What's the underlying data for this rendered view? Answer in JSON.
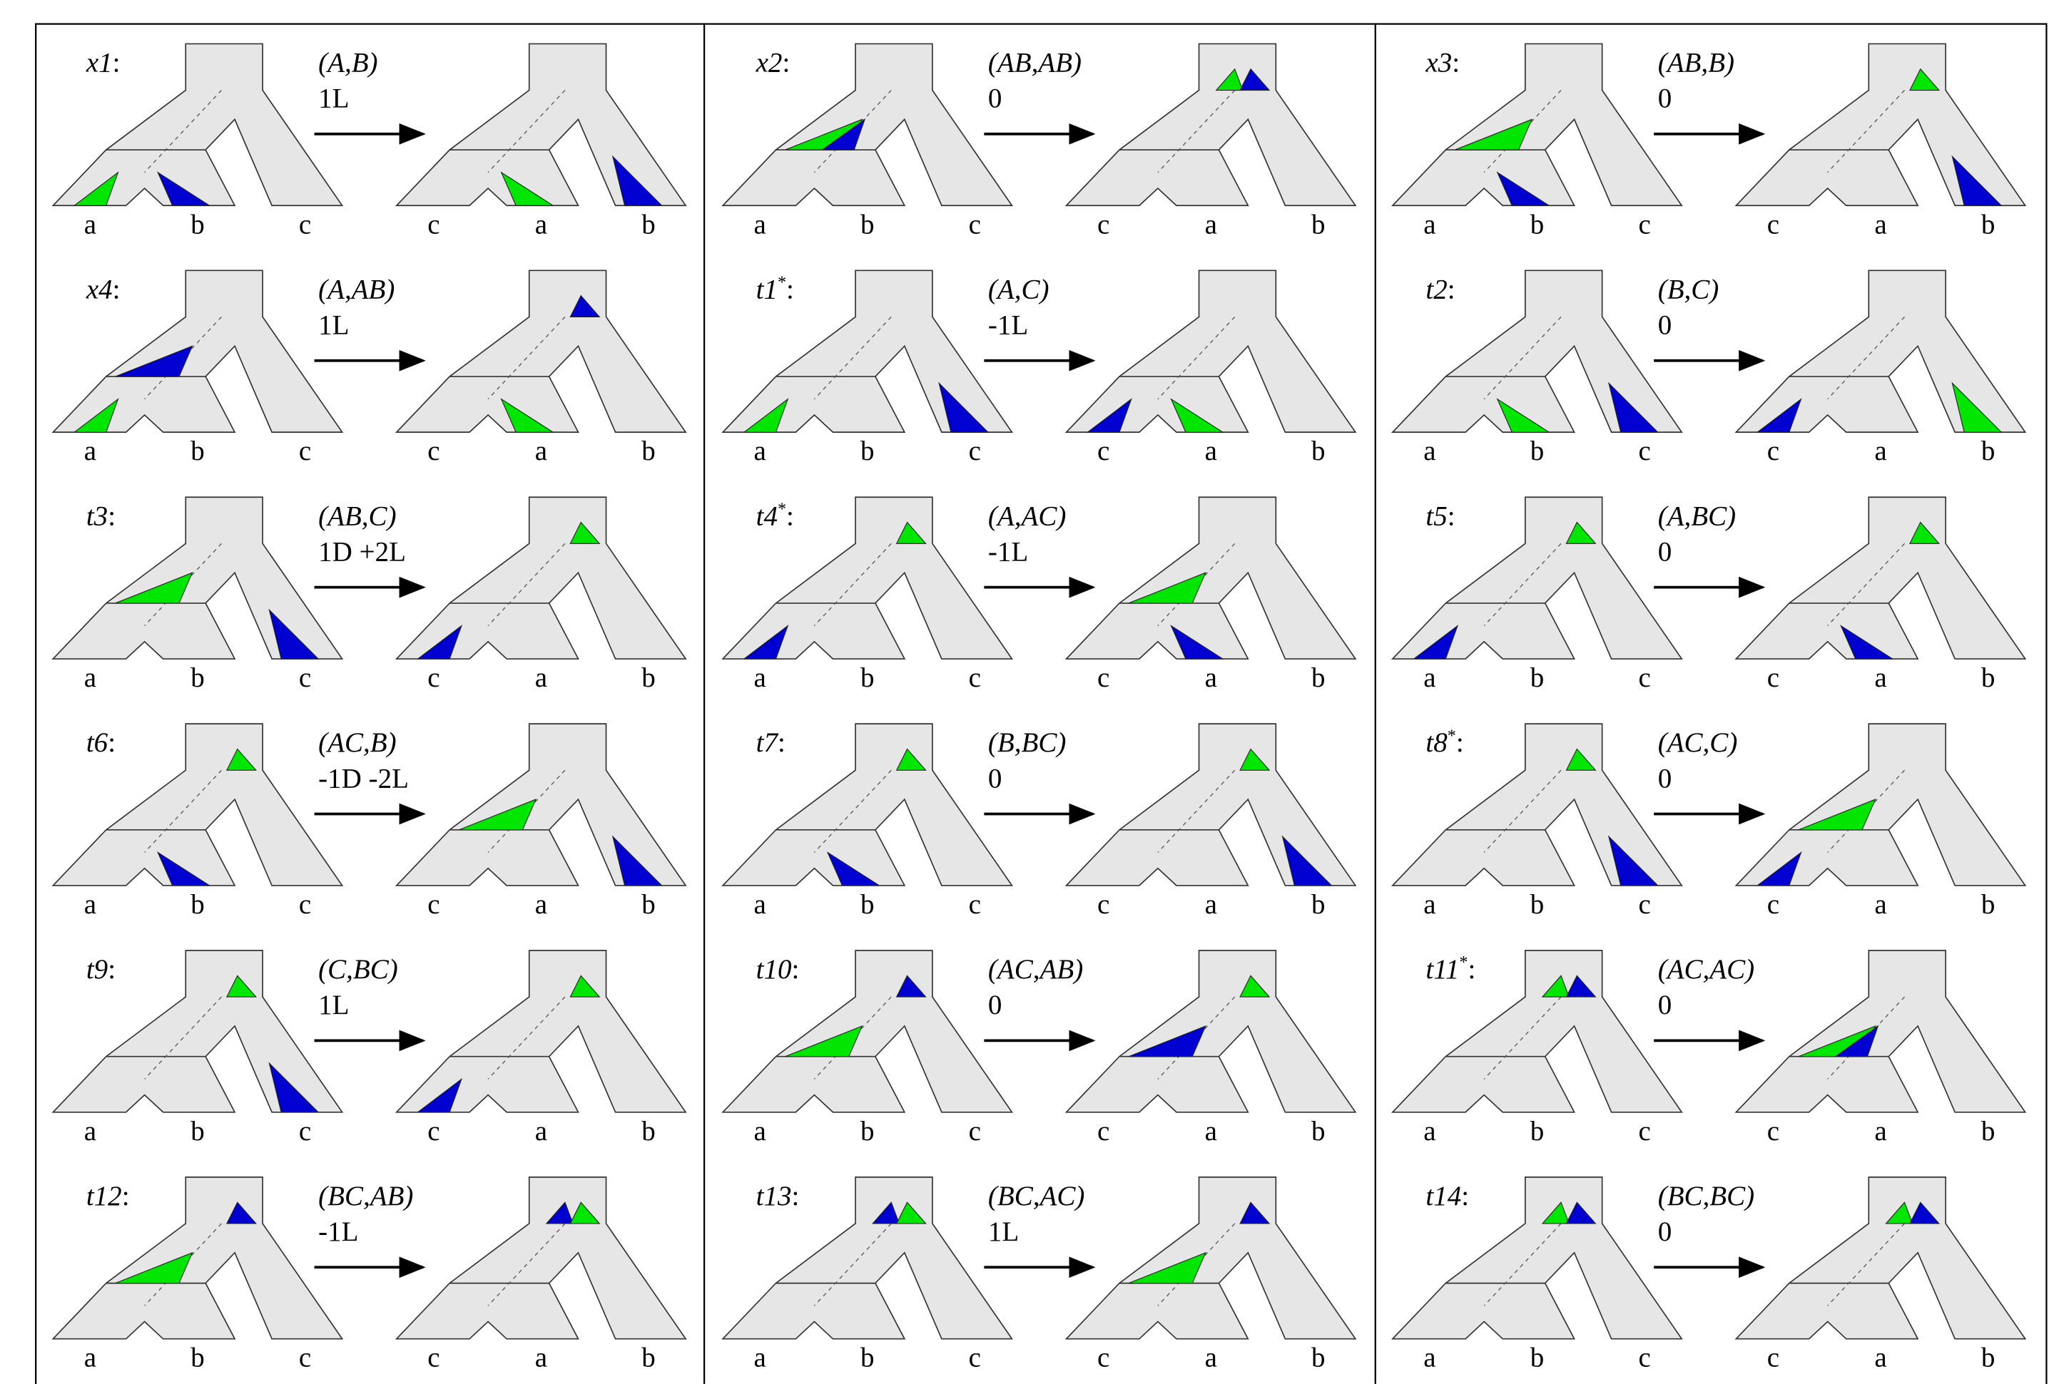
{
  "separator": ":",
  "panels": [
    {
      "label": "x1",
      "pair": "(A,B)",
      "cost": "1L",
      "left_leaves": [
        "a",
        "b",
        "c"
      ],
      "right_leaves": [
        "c",
        "a",
        "b"
      ]
    },
    {
      "label": "x2",
      "pair": "(AB,AB)",
      "cost": "0",
      "left_leaves": [
        "a",
        "b",
        "c"
      ],
      "right_leaves": [
        "c",
        "a",
        "b"
      ]
    },
    {
      "label": "x3",
      "pair": "(AB,B)",
      "cost": "0",
      "left_leaves": [
        "a",
        "b",
        "c"
      ],
      "right_leaves": [
        "c",
        "a",
        "b"
      ]
    },
    {
      "label": "x4",
      "pair": "(A,AB)",
      "cost": "1L",
      "left_leaves": [
        "a",
        "b",
        "c"
      ],
      "right_leaves": [
        "c",
        "a",
        "b"
      ]
    },
    {
      "label": "t1",
      "superscript": "*",
      "pair": "(A,C)",
      "cost": "-1L",
      "left_leaves": [
        "a",
        "b",
        "c"
      ],
      "right_leaves": [
        "c",
        "a",
        "b"
      ]
    },
    {
      "label": "t2",
      "pair": "(B,C)",
      "cost": "0",
      "left_leaves": [
        "a",
        "b",
        "c"
      ],
      "right_leaves": [
        "c",
        "a",
        "b"
      ]
    },
    {
      "label": "t3",
      "pair": "(AB,C)",
      "cost": "1D +2L",
      "left_leaves": [
        "a",
        "b",
        "c"
      ],
      "right_leaves": [
        "c",
        "a",
        "b"
      ]
    },
    {
      "label": "t4",
      "superscript": "*",
      "pair": "(A,AC)",
      "cost": "-1L",
      "left_leaves": [
        "a",
        "b",
        "c"
      ],
      "right_leaves": [
        "c",
        "a",
        "b"
      ]
    },
    {
      "label": "t5",
      "pair": "(A,BC)",
      "cost": "0",
      "left_leaves": [
        "a",
        "b",
        "c"
      ],
      "right_leaves": [
        "c",
        "a",
        "b"
      ]
    },
    {
      "label": "t6",
      "pair": "(AC,B)",
      "cost": "-1D -2L",
      "left_leaves": [
        "a",
        "b",
        "c"
      ],
      "right_leaves": [
        "c",
        "a",
        "b"
      ]
    },
    {
      "label": "t7",
      "pair": "(B,BC)",
      "cost": "0",
      "left_leaves": [
        "a",
        "b",
        "c"
      ],
      "right_leaves": [
        "c",
        "a",
        "b"
      ]
    },
    {
      "label": "t8",
      "superscript": "*",
      "pair": "(AC,C)",
      "cost": "0",
      "left_leaves": [
        "a",
        "b",
        "c"
      ],
      "right_leaves": [
        "c",
        "a",
        "b"
      ]
    },
    {
      "label": "t9",
      "pair": "(C,BC)",
      "cost": "1L",
      "left_leaves": [
        "a",
        "b",
        "c"
      ],
      "right_leaves": [
        "c",
        "a",
        "b"
      ]
    },
    {
      "label": "t10",
      "pair": "(AC,AB)",
      "cost": "0",
      "left_leaves": [
        "a",
        "b",
        "c"
      ],
      "right_leaves": [
        "c",
        "a",
        "b"
      ]
    },
    {
      "label": "t11",
      "superscript": "*",
      "pair": "(AC,AC)",
      "cost": "0",
      "left_leaves": [
        "a",
        "b",
        "c"
      ],
      "right_leaves": [
        "c",
        "a",
        "b"
      ]
    },
    {
      "label": "t12",
      "pair": "(BC,AB)",
      "cost": "-1L",
      "left_leaves": [
        "a",
        "b",
        "c"
      ],
      "right_leaves": [
        "c",
        "a",
        "b"
      ]
    },
    {
      "label": "t13",
      "pair": "(BC,AC)",
      "cost": "1L",
      "left_leaves": [
        "a",
        "b",
        "c"
      ],
      "right_leaves": [
        "c",
        "a",
        "b"
      ]
    },
    {
      "label": "t14",
      "pair": "(BC,BC)",
      "cost": "0",
      "left_leaves": [
        "a",
        "b",
        "c"
      ],
      "right_leaves": [
        "c",
        "a",
        "b"
      ]
    }
  ]
}
